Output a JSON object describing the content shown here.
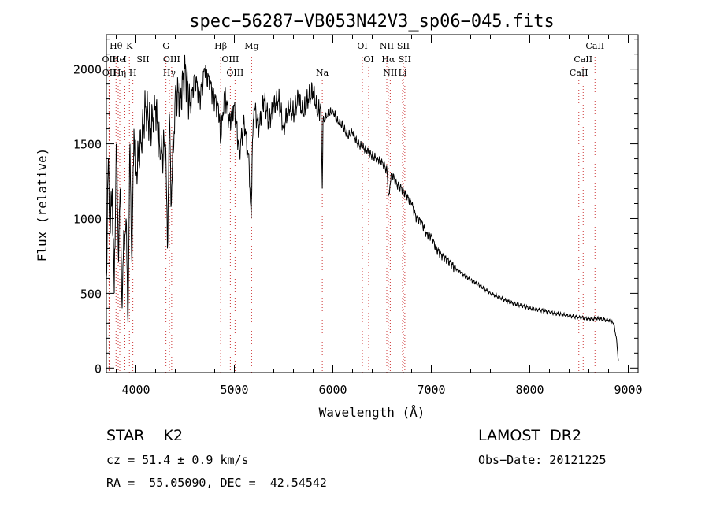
{
  "chart_data": {
    "type": "line",
    "title": "spec−56287−VB053N42V3_sp06−045.fits",
    "xlabel": "Wavelength (Å)",
    "ylabel": "Flux (relative)",
    "xlim": [
      3700,
      9100
    ],
    "ylim": [
      -30,
      2230
    ],
    "xticks": [
      4000,
      5000,
      6000,
      7000,
      8000,
      9000
    ],
    "yticks": [
      0,
      500,
      1000,
      1500,
      2000
    ],
    "grid": false,
    "series": [
      {
        "x": [
          3700,
          3720,
          3740,
          3760,
          3780,
          3800,
          3820,
          3840,
          3860,
          3880,
          3900,
          3920,
          3940,
          3960,
          3980,
          4000,
          4050,
          4100,
          4150,
          4200,
          4250,
          4300,
          4320,
          4340,
          4360,
          4400,
          4450,
          4500,
          4550,
          4600,
          4650,
          4700,
          4750,
          4800,
          4850,
          4860,
          4900,
          4950,
          5000,
          5050,
          5100,
          5150,
          5170,
          5180,
          5200,
          5250,
          5300,
          5350,
          5400,
          5450,
          5500,
          5550,
          5600,
          5650,
          5700,
          5750,
          5800,
          5850,
          5880,
          5893,
          5900,
          5950,
          6000,
          6050,
          6100,
          6150,
          6200,
          6250,
          6300,
          6350,
          6400,
          6450,
          6500,
          6550,
          6563,
          6600,
          6650,
          6700,
          6750,
          6800,
          6850,
          6900,
          6950,
          7000,
          7050,
          7100,
          7150,
          7200,
          7250,
          7300,
          7350,
          7400,
          7450,
          7500,
          7600,
          7700,
          7800,
          7900,
          8000,
          8100,
          8200,
          8300,
          8400,
          8500,
          8600,
          8700,
          8800,
          8850,
          8880,
          8900
        ],
        "y": [
          600,
          1400,
          900,
          1200,
          500,
          1500,
          800,
          1200,
          400,
          900,
          1000,
          300,
          1500,
          700,
          1600,
          1300,
          1500,
          1750,
          1600,
          1750,
          1400,
          1500,
          800,
          1700,
          1100,
          1850,
          1800,
          2000,
          1750,
          1950,
          1800,
          2000,
          1900,
          1800,
          1700,
          1500,
          1850,
          1650,
          1750,
          1450,
          1650,
          1350,
          1000,
          1400,
          1750,
          1600,
          1800,
          1650,
          1750,
          1800,
          1600,
          1750,
          1700,
          1800,
          1700,
          1800,
          1850,
          1700,
          1750,
          1200,
          1650,
          1700,
          1720,
          1650,
          1620,
          1550,
          1580,
          1500,
          1480,
          1450,
          1420,
          1400,
          1380,
          1320,
          1150,
          1300,
          1230,
          1200,
          1150,
          1100,
          1000,
          980,
          900,
          880,
          800,
          760,
          730,
          700,
          660,
          640,
          610,
          590,
          570,
          550,
          500,
          470,
          440,
          420,
          400,
          390,
          375,
          360,
          350,
          340,
          330,
          330,
          320,
          300,
          200,
          50
        ]
      }
    ],
    "lines": [
      {
        "name": "Hθ",
        "w": 3798,
        "row": 1
      },
      {
        "name": "K",
        "w": 3934,
        "row": 1
      },
      {
        "name": "OII",
        "w": 3727,
        "row": 2
      },
      {
        "name": "He",
        "w": 3820,
        "row": 2
      },
      {
        "name": "I",
        "w": 3888,
        "row": 2
      },
      {
        "name": "SII",
        "w": 4072,
        "row": 2
      },
      {
        "name": "OII",
        "w": 3729,
        "row": 3
      },
      {
        "name": "Hη",
        "w": 3836,
        "row": 3
      },
      {
        "name": "H",
        "w": 3969,
        "row": 3
      },
      {
        "name": "G",
        "w": 4305,
        "row": 1
      },
      {
        "name": "OIII",
        "w": 4363,
        "row": 2
      },
      {
        "name": "Hγ",
        "w": 4340,
        "row": 3
      },
      {
        "name": "Hβ",
        "w": 4861,
        "row": 1
      },
      {
        "name": "OIII",
        "w": 4959,
        "row": 2
      },
      {
        "name": "OIII",
        "w": 5007,
        "row": 3
      },
      {
        "name": "Mg",
        "w": 5175,
        "row": 1
      },
      {
        "name": "Na",
        "w": 5893,
        "row": 3
      },
      {
        "name": "OI",
        "w": 6300,
        "row": 1
      },
      {
        "name": "OI",
        "w": 6364,
        "row": 2
      },
      {
        "name": "NII",
        "w": 6548,
        "row": 1
      },
      {
        "name": "SII",
        "w": 6716,
        "row": 1
      },
      {
        "name": "Hα",
        "w": 6563,
        "row": 2
      },
      {
        "name": "SII",
        "w": 6731,
        "row": 2
      },
      {
        "name": "NII",
        "w": 6583,
        "row": 3
      },
      {
        "name": "Li",
        "w": 6708,
        "row": 3
      },
      {
        "name": "CaII",
        "w": 8662,
        "row": 1
      },
      {
        "name": "CaII",
        "w": 8542,
        "row": 2
      },
      {
        "name": "CaII",
        "w": 8498,
        "row": 3
      }
    ]
  },
  "info": {
    "object": "STAR    K2",
    "survey": "LAMOST  DR2",
    "cz": "cz = 51.4 ± 0.9 km/s",
    "obs_date": "Obs−Date: 20121225",
    "radec": "RA =  55.05090, DEC =  42.54542"
  }
}
